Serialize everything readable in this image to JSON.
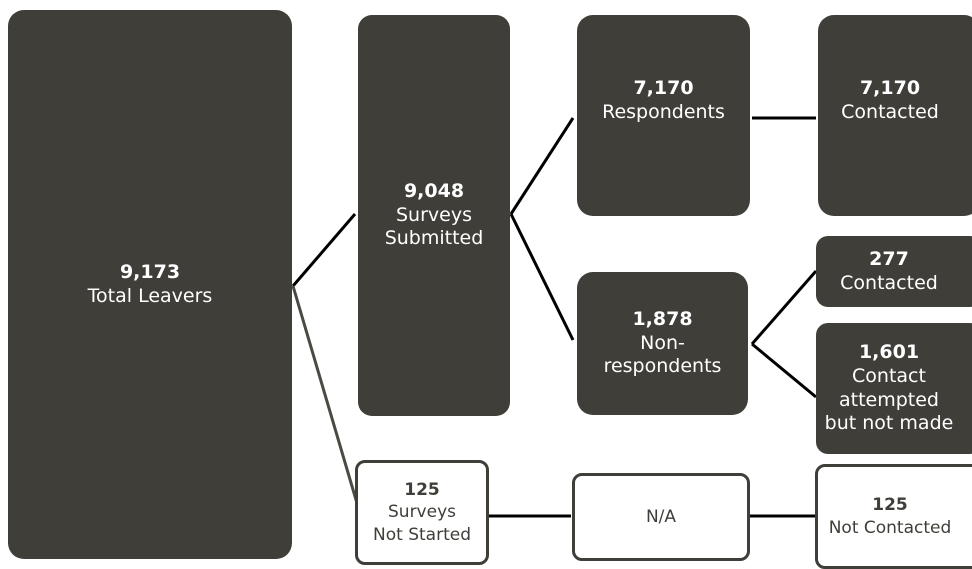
{
  "colors": {
    "dark_box": "#3f3e38",
    "light_box": "#ffffff",
    "connector": "#000000"
  },
  "nodes": {
    "total_leavers": {
      "value": "9,173",
      "label": "Total Leavers"
    },
    "surveys_submitted": {
      "value": "9,048",
      "label": "Surveys\nSubmitted"
    },
    "surveys_not_started": {
      "value": "125",
      "label": "Surveys\nNot Started"
    },
    "respondents": {
      "value": "7,170",
      "label": "Respondents"
    },
    "non_respondents": {
      "value": "1,878",
      "label": "Non-\nrespondents"
    },
    "na": {
      "label": "N/A"
    },
    "respondents_contacted": {
      "value": "7,170",
      "label": "Contacted"
    },
    "non_resp_contacted": {
      "value": "277",
      "label": "Contacted"
    },
    "contact_attempted": {
      "value": "1,601",
      "label": "Contact\nattempted\nbut not made"
    },
    "not_contacted": {
      "value": "125",
      "label": "Not Contacted"
    }
  }
}
